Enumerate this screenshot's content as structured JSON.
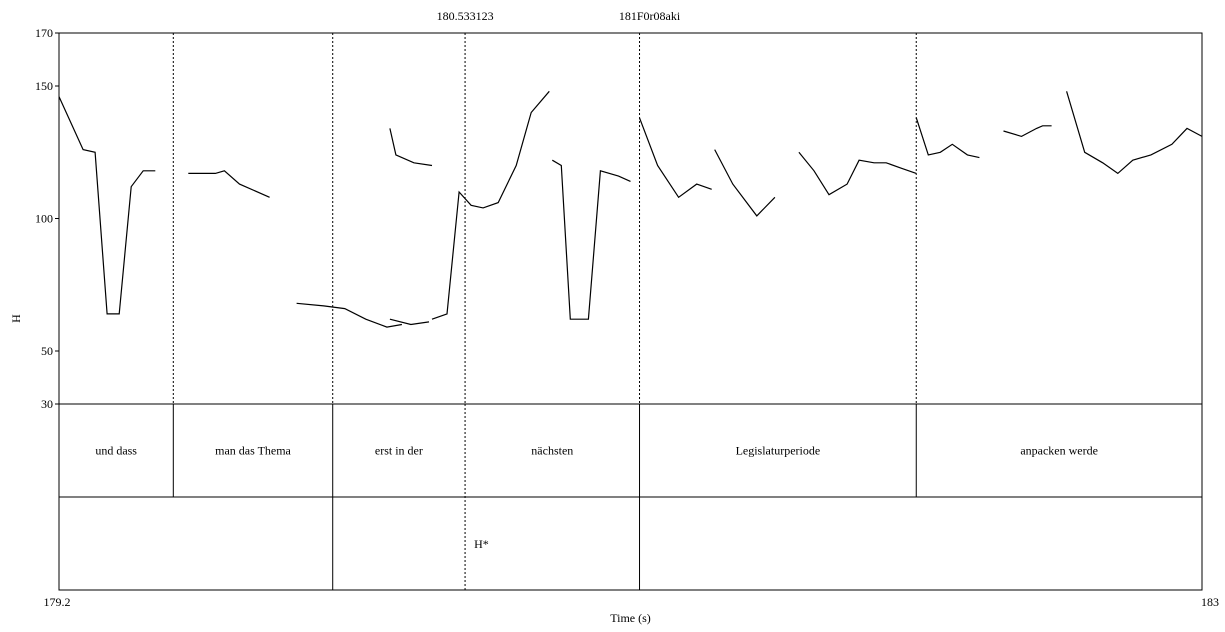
{
  "chart_data": {
    "type": "line",
    "xlabel": "Time (s)",
    "ylabel": "H",
    "xlim": [
      179.2,
      183
    ],
    "ylim": [
      30,
      170
    ],
    "x_tick_labels": [
      "179.2",
      "183"
    ],
    "y_ticks": [
      170,
      150,
      100,
      50,
      30
    ],
    "top_labels": [
      "180.533123",
      "181F0r08aki"
    ],
    "pitch_segments": [
      {
        "x": [
          179.2,
          179.28,
          179.32,
          179.36,
          179.4,
          179.44,
          179.48,
          179.52
        ],
        "y": [
          146,
          126,
          125,
          64,
          64,
          112,
          118,
          118
        ]
      },
      {
        "x": [
          179.63,
          179.72,
          179.75,
          179.8,
          179.9
        ],
        "y": [
          117,
          117,
          118,
          113,
          108
        ]
      },
      {
        "x": [
          179.99,
          180.08,
          180.15,
          180.22,
          180.29,
          180.34
        ],
        "y": [
          68,
          67,
          66,
          62,
          59,
          60
        ]
      },
      {
        "x": [
          180.3,
          180.32,
          180.38,
          180.44
        ],
        "y": [
          134,
          124,
          121,
          120
        ]
      },
      {
        "x": [
          180.3,
          180.37,
          180.43
        ],
        "y": [
          62,
          60,
          61
        ]
      },
      {
        "x": [
          180.44,
          180.49,
          180.53,
          180.57,
          180.61,
          180.66,
          180.72,
          180.77,
          180.83
        ],
        "y": [
          62,
          64,
          110,
          105,
          104,
          106,
          120,
          140,
          148
        ]
      },
      {
        "x": [
          180.84,
          180.87,
          180.9,
          180.96,
          181.0,
          181.06,
          181.1
        ],
        "y": [
          122,
          120,
          62,
          62,
          118,
          116,
          114
        ]
      },
      {
        "x": [
          181.13,
          181.19,
          181.26,
          181.32,
          181.37
        ],
        "y": [
          138,
          120,
          108,
          113,
          111
        ]
      },
      {
        "x": [
          181.38,
          181.44,
          181.52,
          181.58
        ],
        "y": [
          126,
          113,
          101,
          108
        ]
      },
      {
        "x": [
          181.66,
          181.71,
          181.76,
          181.82,
          181.86,
          181.91,
          181.95,
          182.0,
          182.05
        ],
        "y": [
          125,
          118,
          109,
          113,
          122,
          121,
          121,
          119,
          117
        ]
      },
      {
        "x": [
          182.05,
          182.09,
          182.13,
          182.17,
          182.22,
          182.26
        ],
        "y": [
          138,
          124,
          125,
          128,
          124,
          123
        ]
      },
      {
        "x": [
          182.34,
          182.4,
          182.45,
          182.47,
          182.5
        ],
        "y": [
          133,
          131,
          134,
          135,
          135
        ]
      },
      {
        "x": [
          182.55,
          182.61,
          182.67,
          182.72,
          182.77,
          182.83,
          182.9,
          182.95,
          183.0
        ],
        "y": [
          148,
          125,
          121,
          117,
          122,
          124,
          128,
          134,
          131
        ]
      }
    ],
    "boundaries_upper": [
      179.58,
      180.11,
      180.55,
      181.13,
      182.05
    ],
    "boundaries_lower_tier1": [
      179.58,
      180.11,
      181.13,
      182.05
    ],
    "boundaries_lower_tier2": [
      180.11,
      181.13
    ],
    "words": [
      {
        "text": "und dass",
        "start": 179.2,
        "end": 179.58
      },
      {
        "text": "man das Thema",
        "start": 179.58,
        "end": 180.11
      },
      {
        "text": "erst in der",
        "start": 180.11,
        "end": 180.55
      },
      {
        "text": "nächsten",
        "start": 180.55,
        "end": 181.13
      },
      {
        "text": "Legislaturperiode",
        "start": 181.13,
        "end": 182.05
      },
      {
        "text": "anpacken werde",
        "start": 182.05,
        "end": 183
      }
    ],
    "tones": [
      {
        "text": "H*",
        "x": 180.58
      }
    ]
  }
}
